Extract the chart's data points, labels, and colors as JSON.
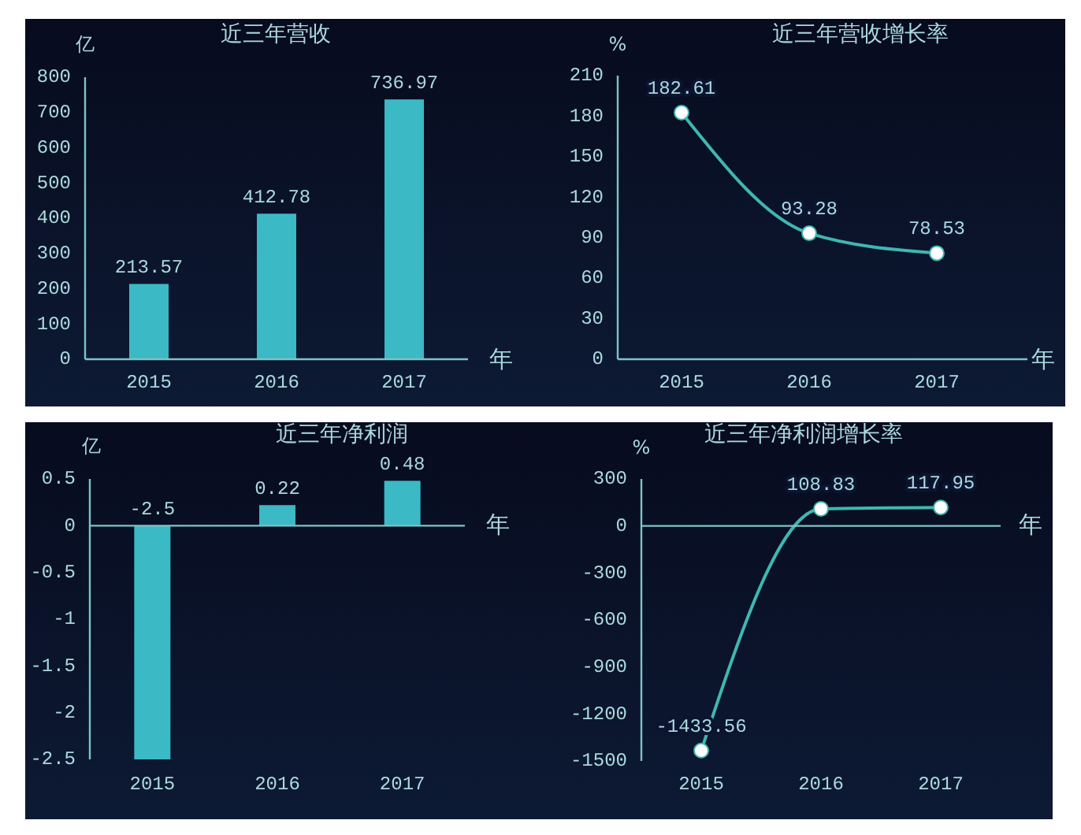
{
  "chart_data": [
    {
      "type": "bar",
      "title": "近三年营收",
      "ylabel": "亿",
      "xlabel": "年",
      "categories": [
        "2015",
        "2016",
        "2017"
      ],
      "values": [
        213.57,
        412.78,
        736.97
      ],
      "color": "#3bb9c5",
      "ylim": [
        0,
        800
      ],
      "yticks": [
        0,
        100,
        200,
        300,
        400,
        500,
        600,
        700,
        800
      ],
      "data_labels": true
    },
    {
      "type": "line",
      "title": "近三年营收增长率",
      "ylabel": "%",
      "xlabel": "年",
      "categories": [
        "2015",
        "2016",
        "2017"
      ],
      "values": [
        182.61,
        93.28,
        78.53
      ],
      "color": "#3fb7b0",
      "marker": "circle",
      "ylim": [
        0,
        210
      ],
      "yticks": [
        0,
        30,
        60,
        90,
        120,
        150,
        180,
        210
      ],
      "data_labels": true
    },
    {
      "type": "bar",
      "title": "近三年净利润",
      "ylabel": "亿",
      "xlabel": "年",
      "categories": [
        "2015",
        "2016",
        "2017"
      ],
      "values": [
        -2.5,
        0.22,
        0.48
      ],
      "color": "#3bb9c5",
      "ylim": [
        -2.5,
        0.5
      ],
      "yticks": [
        -2.5,
        -2,
        -1.5,
        -1,
        -0.5,
        0,
        0.5
      ],
      "data_labels": true,
      "ref_lines": [
        {
          "axis": "y",
          "value": 0,
          "color": "#7cc4c6"
        }
      ]
    },
    {
      "type": "line",
      "title": "近三年净利润增长率",
      "ylabel": "%",
      "xlabel": "年",
      "categories": [
        "2015",
        "2016",
        "2017"
      ],
      "values": [
        -1433.56,
        108.83,
        117.95
      ],
      "color": "#3fb7b0",
      "marker": "circle",
      "ylim": [
        -1500,
        300
      ],
      "yticks": [
        -1500,
        -1200,
        -900,
        -600,
        -300,
        0,
        300
      ],
      "data_labels": true,
      "ref_lines": [
        {
          "axis": "y",
          "value": 0,
          "color": "#7cc4c6"
        }
      ]
    }
  ]
}
